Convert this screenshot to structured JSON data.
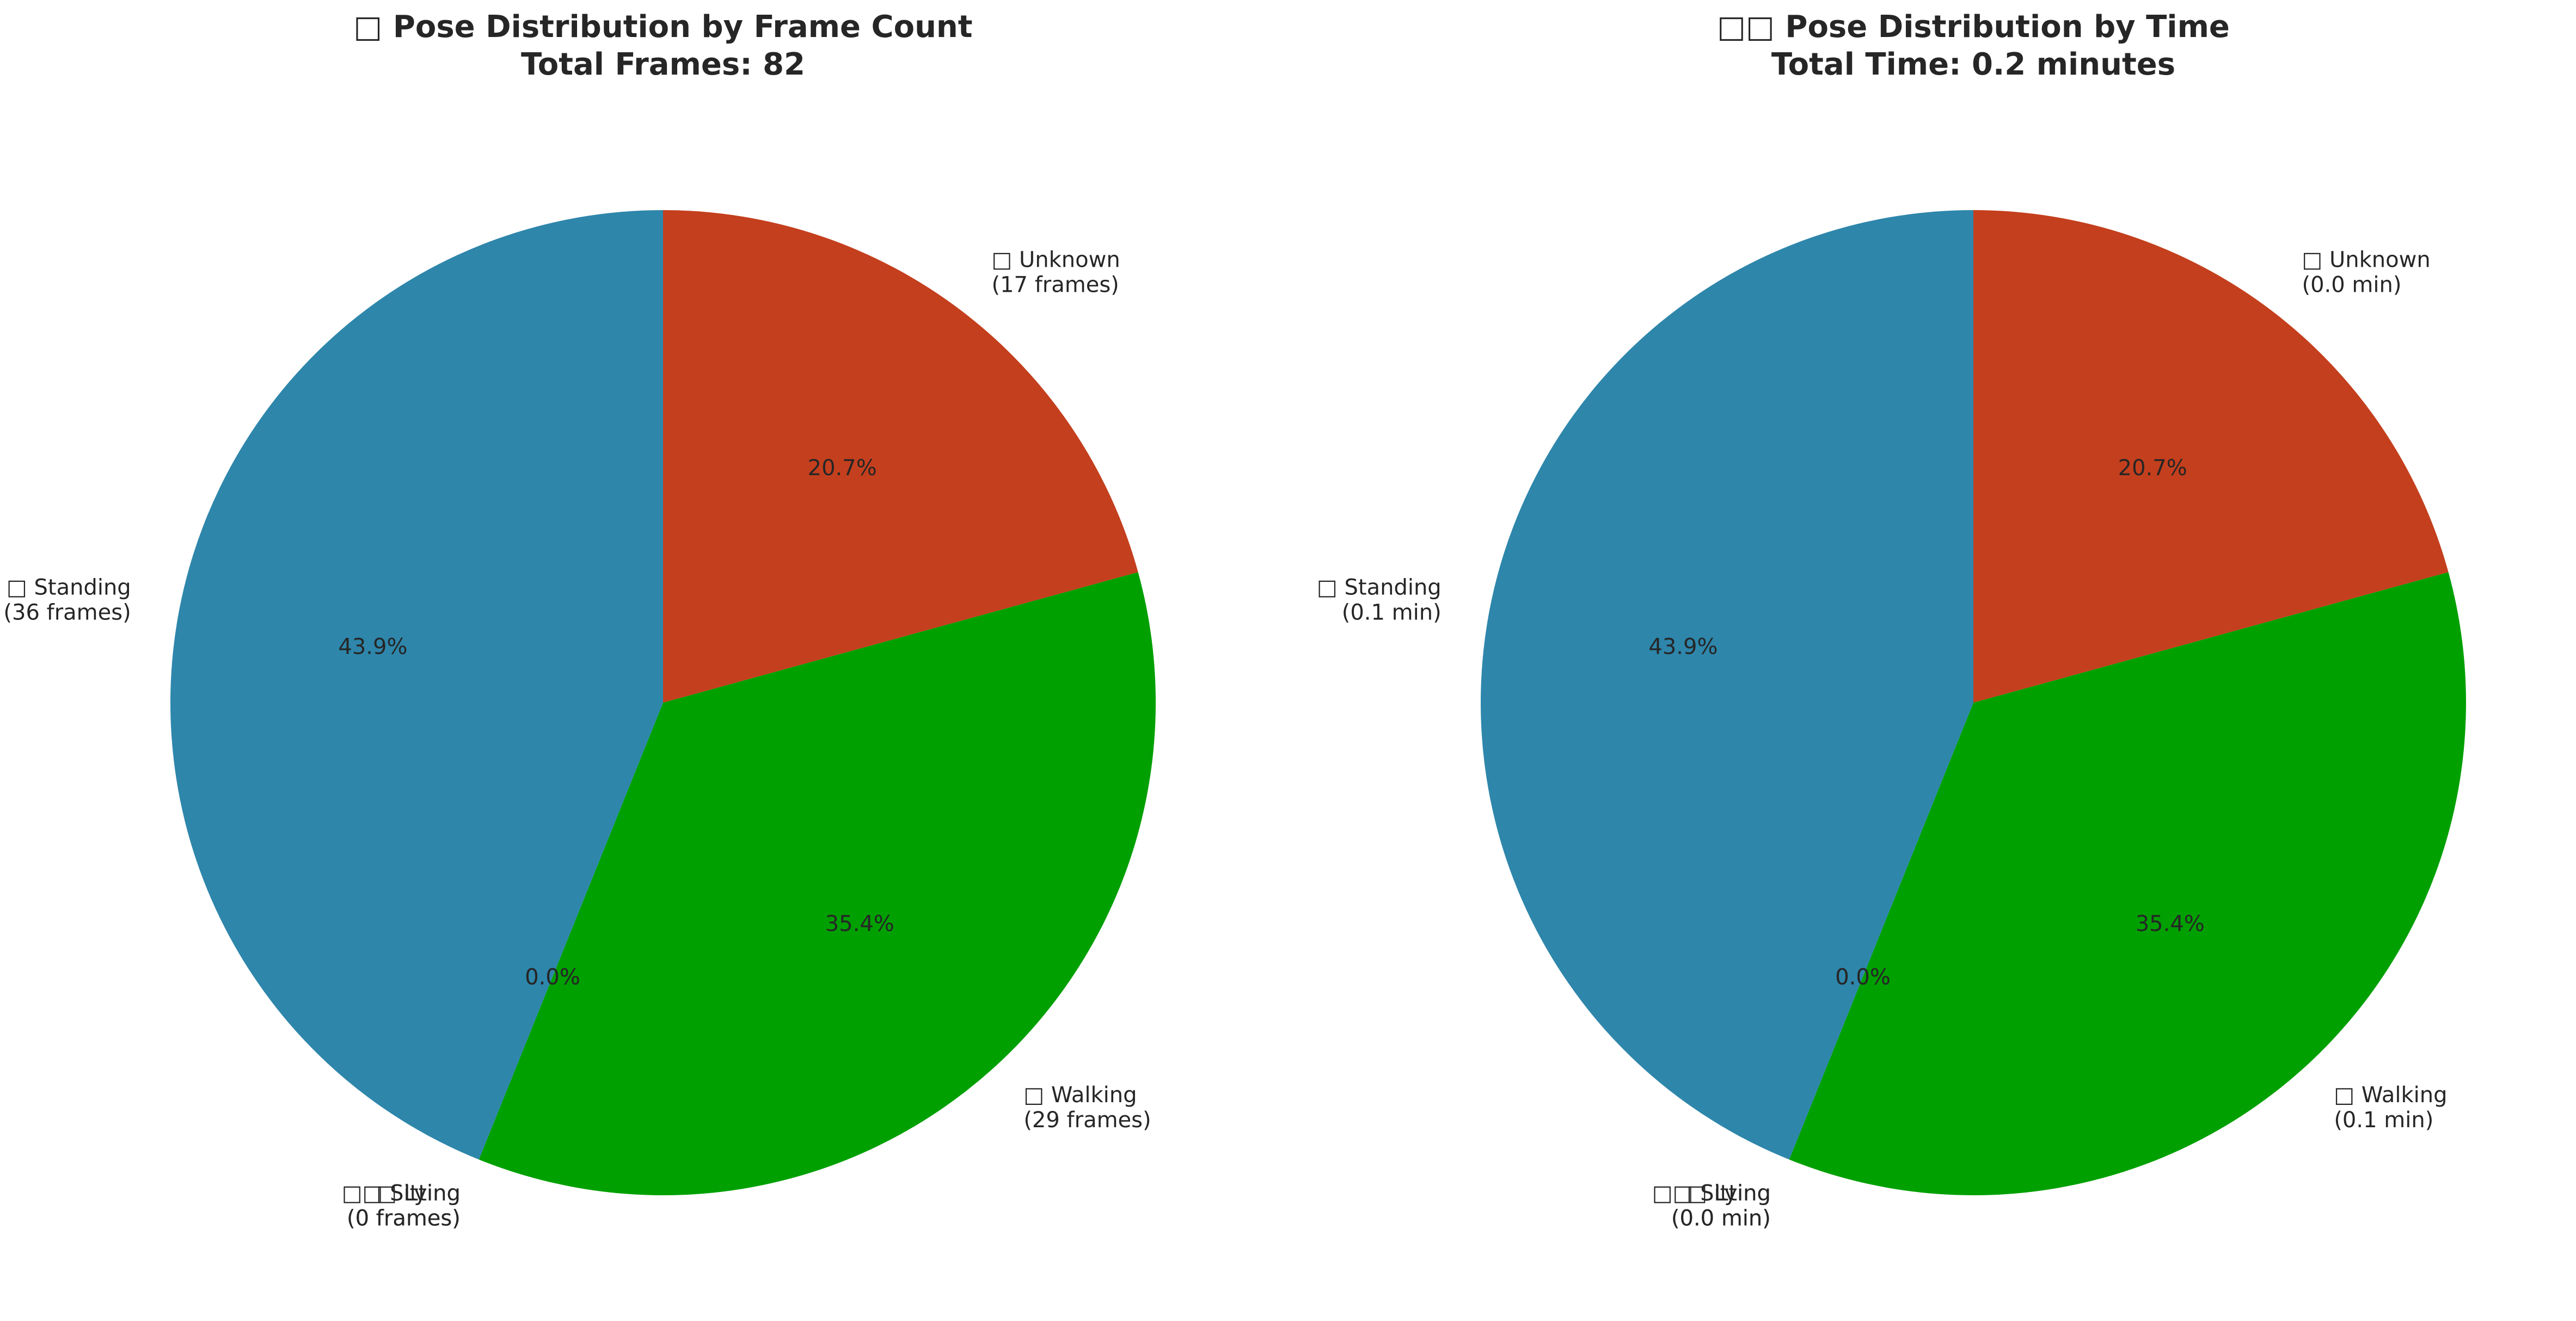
{
  "chart_data": [
    {
      "type": "pie",
      "title": "□ Pose Distribution by Frame Count",
      "subtitle": "Total Frames: 82",
      "start_angle_deg": 90,
      "direction": "clockwise",
      "slices": [
        {
          "label": "□ Unknown",
          "detail": "(17 frames)",
          "value": 17,
          "percent_label": "20.7%",
          "color": "#C43F1D"
        },
        {
          "label": "□ Walking",
          "detail": "(29 frames)",
          "value": 29,
          "percent_label": "35.4%",
          "color": "#00A000"
        },
        {
          "label": "□□ Sitting",
          "detail": "(0 frames)",
          "value": 0,
          "percent_label": "0.0%",
          "color": "#A23B72"
        },
        {
          "label": "□ Lying",
          "detail": "(0 frames)",
          "value": 0,
          "percent_label": "0.0%",
          "color": "#F18F01"
        },
        {
          "label": "□ Standing",
          "detail": "(36 frames)",
          "value": 36,
          "percent_label": "43.9%",
          "color": "#2E86AB"
        }
      ]
    },
    {
      "type": "pie",
      "title": "□□ Pose Distribution by Time",
      "subtitle": "Total Time: 0.2 minutes",
      "start_angle_deg": 90,
      "direction": "clockwise",
      "slices": [
        {
          "label": "□ Unknown",
          "detail": "(0.0 min)",
          "value": 17,
          "percent_label": "20.7%",
          "color": "#C43F1D"
        },
        {
          "label": "□ Walking",
          "detail": "(0.1 min)",
          "value": 29,
          "percent_label": "35.4%",
          "color": "#00A000"
        },
        {
          "label": "□□ Sitting",
          "detail": "(0.0 min)",
          "value": 0,
          "percent_label": "0.0%",
          "color": "#A23B72"
        },
        {
          "label": "□ Lying",
          "detail": "(0.0 min)",
          "value": 0,
          "percent_label": "0.0%",
          "color": "#F18F01"
        },
        {
          "label": "□ Standing",
          "detail": "(0.1 min)",
          "value": 36,
          "percent_label": "43.9%",
          "color": "#2E86AB"
        }
      ]
    }
  ]
}
